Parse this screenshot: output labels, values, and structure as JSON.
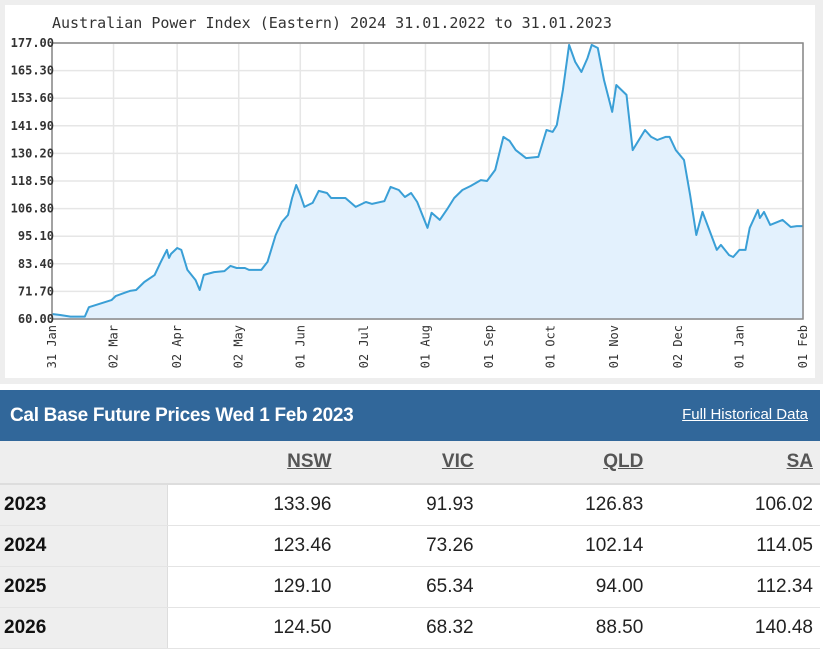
{
  "chart_data": {
    "type": "area",
    "title": "Australian Power Index (Eastern) 2024 31.01.2022 to 31.01.2023",
    "xlabel": "",
    "ylabel": "",
    "x_unit": "days since 31 Jan 2022",
    "xlim": [
      0,
      366
    ],
    "ylim": [
      60,
      177
    ],
    "grid": true,
    "y_ticks": [
      "60.00",
      "71.70",
      "83.40",
      "95.10",
      "106.80",
      "118.50",
      "130.20",
      "141.90",
      "153.60",
      "165.30",
      "177.00"
    ],
    "x_ticks": [
      {
        "day": 0,
        "d": "31",
        "m": "Jan"
      },
      {
        "day": 30,
        "d": "02",
        "m": "Mar"
      },
      {
        "day": 61,
        "d": "02",
        "m": "Apr"
      },
      {
        "day": 91,
        "d": "02",
        "m": "May"
      },
      {
        "day": 121,
        "d": "01",
        "m": "Jun"
      },
      {
        "day": 152,
        "d": "02",
        "m": "Jul"
      },
      {
        "day": 182,
        "d": "01",
        "m": "Aug"
      },
      {
        "day": 213,
        "d": "01",
        "m": "Sep"
      },
      {
        "day": 243,
        "d": "01",
        "m": "Oct"
      },
      {
        "day": 274,
        "d": "01",
        "m": "Nov"
      },
      {
        "day": 305,
        "d": "02",
        "m": "Dec"
      },
      {
        "day": 335,
        "d": "01",
        "m": "Jan"
      },
      {
        "day": 366,
        "d": "01",
        "m": "Feb"
      }
    ],
    "line_color": "#3a9fd6",
    "fill_color": "#e3f1fd",
    "series": [
      {
        "name": "Australian Power Index (Eastern) 2024",
        "points": [
          [
            0,
            62.1
          ],
          [
            4,
            61.7
          ],
          [
            9,
            61
          ],
          [
            16,
            61
          ],
          [
            18,
            65
          ],
          [
            23,
            66.4
          ],
          [
            29,
            68
          ],
          [
            31,
            69.7
          ],
          [
            38,
            71.9
          ],
          [
            41,
            72.3
          ],
          [
            45,
            75.7
          ],
          [
            50,
            78.6
          ],
          [
            53,
            84.2
          ],
          [
            56,
            89.3
          ],
          [
            57,
            85.9
          ],
          [
            58,
            87.6
          ],
          [
            61,
            90.1
          ],
          [
            63,
            89.3
          ],
          [
            66,
            80.8
          ],
          [
            70,
            76.5
          ],
          [
            72,
            72.3
          ],
          [
            74,
            78.7
          ],
          [
            79,
            79.9
          ],
          [
            84,
            80.3
          ],
          [
            87,
            82.5
          ],
          [
            90,
            81.6
          ],
          [
            94,
            81.6
          ],
          [
            96,
            80.8
          ],
          [
            102,
            80.8
          ],
          [
            105,
            84.2
          ],
          [
            109,
            95.6
          ],
          [
            112,
            101.1
          ],
          [
            115,
            104.1
          ],
          [
            117,
            111.3
          ],
          [
            119,
            116.8
          ],
          [
            121,
            112.6
          ],
          [
            123,
            107.5
          ],
          [
            127,
            109.2
          ],
          [
            130,
            114.3
          ],
          [
            134,
            113.4
          ],
          [
            136,
            111.3
          ],
          [
            143,
            111.3
          ],
          [
            148,
            107.5
          ],
          [
            153,
            109.6
          ],
          [
            156,
            108.8
          ],
          [
            162,
            110
          ],
          [
            165,
            116
          ],
          [
            169,
            114.7
          ],
          [
            172,
            111.7
          ],
          [
            175,
            113.4
          ],
          [
            178,
            109.6
          ],
          [
            183,
            98.6
          ],
          [
            185,
            105
          ],
          [
            189,
            102
          ],
          [
            193,
            107.1
          ],
          [
            196,
            111.3
          ],
          [
            200,
            114.7
          ],
          [
            204,
            116.4
          ],
          [
            209,
            118.9
          ],
          [
            212,
            118.5
          ],
          [
            216,
            123.2
          ],
          [
            220,
            137.2
          ],
          [
            223,
            135.5
          ],
          [
            226,
            131.6
          ],
          [
            231,
            128.2
          ],
          [
            237,
            128.7
          ],
          [
            241,
            140.1
          ],
          [
            244,
            139.3
          ],
          [
            246,
            142.2
          ],
          [
            249,
            157.1
          ],
          [
            252,
            176.2
          ],
          [
            255,
            169
          ],
          [
            258,
            164.7
          ],
          [
            261,
            170.6
          ],
          [
            263,
            176.2
          ],
          [
            266,
            174.9
          ],
          [
            269,
            161.3
          ],
          [
            273,
            147.8
          ],
          [
            275,
            159.2
          ],
          [
            280,
            155
          ],
          [
            283,
            131.6
          ],
          [
            289,
            140.1
          ],
          [
            292,
            137.2
          ],
          [
            295,
            135.9
          ],
          [
            299,
            137.2
          ],
          [
            301,
            137.2
          ],
          [
            304,
            131.6
          ],
          [
            308,
            127.4
          ],
          [
            311,
            112.6
          ],
          [
            314,
            95.6
          ],
          [
            317,
            105.4
          ],
          [
            324,
            89.3
          ],
          [
            326,
            91.4
          ],
          [
            330,
            87.1
          ],
          [
            332,
            86.3
          ],
          [
            335,
            89.3
          ],
          [
            338,
            89.3
          ],
          [
            340,
            98.6
          ],
          [
            344,
            106.2
          ],
          [
            345,
            102.8
          ],
          [
            347,
            105.4
          ],
          [
            350,
            99.9
          ],
          [
            356,
            102
          ],
          [
            360,
            99
          ],
          [
            363,
            99.4
          ],
          [
            366,
            99.4
          ]
        ]
      }
    ]
  },
  "table": {
    "title": "Cal Base Future Prices Wed 1 Feb 2023",
    "link": "Full Historical Data",
    "columns": [
      "NSW",
      "VIC",
      "QLD",
      "SA"
    ],
    "rows": [
      {
        "year": "2023",
        "values": [
          "133.96",
          "91.93",
          "126.83",
          "106.02"
        ]
      },
      {
        "year": "2024",
        "values": [
          "123.46",
          "73.26",
          "102.14",
          "114.05"
        ]
      },
      {
        "year": "2025",
        "values": [
          "129.10",
          "65.34",
          "94.00",
          "112.34"
        ]
      },
      {
        "year": "2026",
        "values": [
          "124.50",
          "68.32",
          "88.50",
          "140.48"
        ]
      }
    ]
  }
}
